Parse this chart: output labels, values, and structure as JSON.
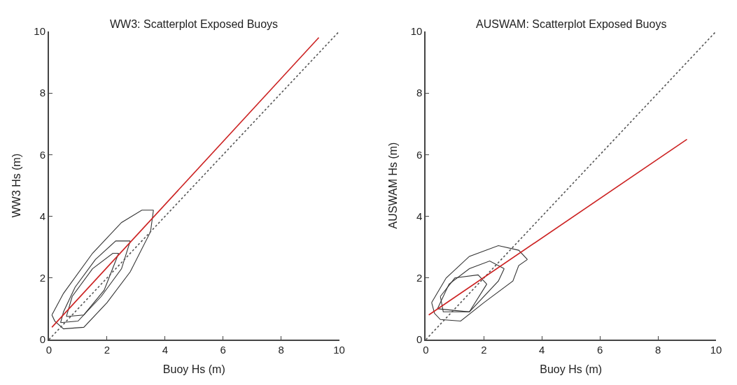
{
  "chart_data": [
    {
      "type": "line",
      "title": "WW3: Scatterplot Exposed Buoys",
      "xlabel": "Buoy Hs (m)",
      "ylabel": "WW3 Hs (m)",
      "xlim": [
        0,
        10
      ],
      "ylim": [
        0,
        10
      ],
      "xticks": [
        0,
        2,
        4,
        6,
        8,
        10
      ],
      "yticks": [
        0,
        2,
        4,
        6,
        8,
        10
      ],
      "marker": "none",
      "series": [
        {
          "color": "#333333",
          "line_style": "solid",
          "x": [
            0.1,
            0.2,
            0.5,
            1.2,
            2.0,
            2.8,
            3.5,
            3.6
          ],
          "values": [
            0.8,
            0.6,
            0.35,
            0.4,
            1.2,
            2.2,
            3.5,
            4.2
          ]
        },
        {
          "color": "#333333",
          "line_style": "solid",
          "x": [
            0.1,
            0.5,
            1.5,
            2.5,
            3.2,
            3.6
          ],
          "values": [
            0.8,
            1.5,
            2.8,
            3.8,
            4.2,
            4.2
          ]
        },
        {
          "color": "#333333",
          "line_style": "solid",
          "x": [
            0.4,
            1.0,
            1.8,
            2.5,
            2.8
          ],
          "values": [
            0.55,
            0.6,
            1.4,
            2.3,
            3.2
          ]
        },
        {
          "color": "#333333",
          "line_style": "solid",
          "x": [
            0.4,
            0.5,
            0.9,
            1.6,
            2.3,
            2.8
          ],
          "values": [
            0.55,
            0.9,
            1.7,
            2.6,
            3.2,
            3.2
          ]
        },
        {
          "color": "#333333",
          "line_style": "solid",
          "x": [
            0.6,
            1.2,
            1.9,
            2.4
          ],
          "values": [
            0.75,
            0.8,
            1.6,
            2.8
          ]
        },
        {
          "color": "#333333",
          "line_style": "solid",
          "x": [
            0.6,
            0.8,
            1.5,
            2.2,
            2.4
          ],
          "values": [
            0.75,
            1.4,
            2.3,
            2.8,
            2.8
          ]
        },
        {
          "color": "#555555",
          "line_style": "dotted",
          "x": [
            0,
            10
          ],
          "values": [
            0,
            10
          ]
        },
        {
          "color": "#cc2222",
          "line_style": "solid",
          "x": [
            0.1,
            9.3
          ],
          "values": [
            0.4,
            9.8
          ]
        }
      ]
    },
    {
      "type": "line",
      "title": "AUSWAM: Scatterplot Exposed Buoys",
      "xlabel": "Buoy Hs (m)",
      "ylabel": "AUSWAM Hs (m)",
      "xlim": [
        0,
        10
      ],
      "ylim": [
        0,
        10
      ],
      "xticks": [
        0,
        2,
        4,
        6,
        8,
        10
      ],
      "yticks": [
        0,
        2,
        4,
        6,
        8,
        10
      ],
      "marker": "none",
      "series": [
        {
          "color": "#333333",
          "line_style": "solid",
          "x": [
            0.2,
            0.3,
            0.5,
            1.2,
            2.0,
            3.0,
            3.2,
            3.5
          ],
          "values": [
            1.2,
            0.85,
            0.65,
            0.6,
            1.2,
            1.9,
            2.4,
            2.6
          ]
        },
        {
          "color": "#333333",
          "line_style": "solid",
          "x": [
            0.2,
            0.7,
            1.5,
            2.5,
            3.2,
            3.5
          ],
          "values": [
            1.2,
            2.0,
            2.7,
            3.05,
            2.9,
            2.6
          ]
        },
        {
          "color": "#333333",
          "line_style": "solid",
          "x": [
            0.4,
            1.5,
            2.5,
            2.7
          ],
          "values": [
            1.0,
            0.9,
            1.9,
            2.3
          ]
        },
        {
          "color": "#333333",
          "line_style": "solid",
          "x": [
            0.4,
            0.8,
            1.5,
            2.2,
            2.7
          ],
          "values": [
            1.0,
            1.8,
            2.3,
            2.55,
            2.3
          ]
        },
        {
          "color": "#333333",
          "line_style": "solid",
          "x": [
            0.5,
            0.6,
            1.5,
            2.1
          ],
          "values": [
            1.4,
            0.9,
            0.9,
            1.8
          ]
        },
        {
          "color": "#333333",
          "line_style": "solid",
          "x": [
            0.5,
            1.0,
            1.8,
            2.1
          ],
          "values": [
            1.4,
            2.0,
            2.1,
            1.8
          ]
        },
        {
          "color": "#555555",
          "line_style": "dotted",
          "x": [
            0,
            10
          ],
          "values": [
            0,
            10
          ]
        },
        {
          "color": "#cc2222",
          "line_style": "solid",
          "x": [
            0.1,
            9.0
          ],
          "values": [
            0.8,
            6.5
          ]
        }
      ]
    }
  ]
}
